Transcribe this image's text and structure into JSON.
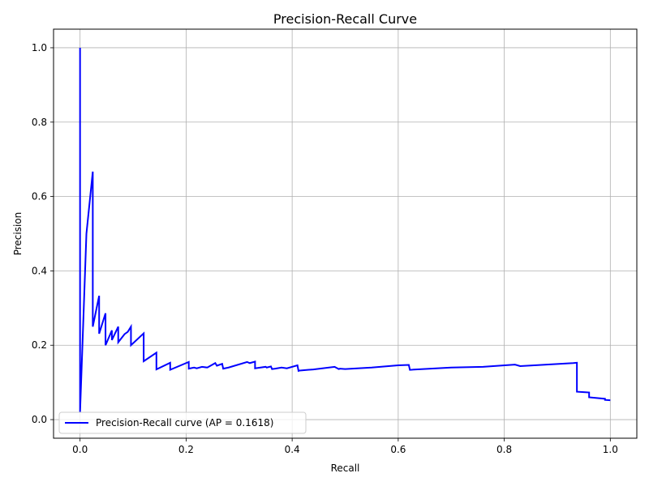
{
  "chart_data": {
    "type": "line",
    "title": "Precision-Recall Curve",
    "xlabel": "Recall",
    "ylabel": "Precision",
    "xlim": [
      -0.05,
      1.05
    ],
    "ylim": [
      -0.05,
      1.05
    ],
    "xticks": [
      0.0,
      0.2,
      0.4,
      0.6,
      0.8,
      1.0
    ],
    "xtick_labels": [
      "0.0",
      "0.2",
      "0.4",
      "0.6",
      "0.8",
      "1.0"
    ],
    "yticks": [
      0.0,
      0.2,
      0.4,
      0.6,
      0.8,
      1.0
    ],
    "ytick_labels": [
      "0.0",
      "0.2",
      "0.4",
      "0.6",
      "0.8",
      "1.0"
    ],
    "grid": true,
    "legend_position": "lower-left",
    "series": [
      {
        "name": "Precision-Recall curve (AP = 0.1618)",
        "color": "#0000ff",
        "x": [
          0.0,
          0.0,
          0.0,
          0.012,
          0.024,
          0.024,
          0.036,
          0.036,
          0.048,
          0.048,
          0.06,
          0.06,
          0.072,
          0.072,
          0.084,
          0.09,
          0.096,
          0.096,
          0.12,
          0.12,
          0.144,
          0.144,
          0.17,
          0.17,
          0.205,
          0.205,
          0.215,
          0.22,
          0.23,
          0.24,
          0.255,
          0.258,
          0.268,
          0.27,
          0.28,
          0.315,
          0.32,
          0.33,
          0.33,
          0.35,
          0.352,
          0.36,
          0.362,
          0.368,
          0.38,
          0.39,
          0.41,
          0.412,
          0.414,
          0.44,
          0.48,
          0.488,
          0.49,
          0.5,
          0.55,
          0.6,
          0.62,
          0.622,
          0.7,
          0.76,
          0.82,
          0.83,
          0.93,
          0.937,
          0.937,
          0.95,
          0.96,
          0.96,
          0.99,
          0.99,
          1.0
        ],
        "y": [
          0.02,
          1.0,
          0.02,
          0.5,
          0.667,
          0.25,
          0.333,
          0.231,
          0.286,
          0.2,
          0.24,
          0.214,
          0.25,
          0.208,
          0.23,
          0.236,
          0.25,
          0.2,
          0.232,
          0.157,
          0.18,
          0.135,
          0.153,
          0.134,
          0.155,
          0.137,
          0.14,
          0.138,
          0.142,
          0.14,
          0.152,
          0.145,
          0.15,
          0.137,
          0.14,
          0.155,
          0.152,
          0.156,
          0.138,
          0.142,
          0.14,
          0.143,
          0.136,
          0.137,
          0.14,
          0.138,
          0.146,
          0.131,
          0.132,
          0.135,
          0.142,
          0.136,
          0.137,
          0.136,
          0.14,
          0.146,
          0.147,
          0.134,
          0.14,
          0.142,
          0.148,
          0.144,
          0.152,
          0.153,
          0.075,
          0.074,
          0.073,
          0.06,
          0.056,
          0.053,
          0.052
        ]
      }
    ]
  }
}
